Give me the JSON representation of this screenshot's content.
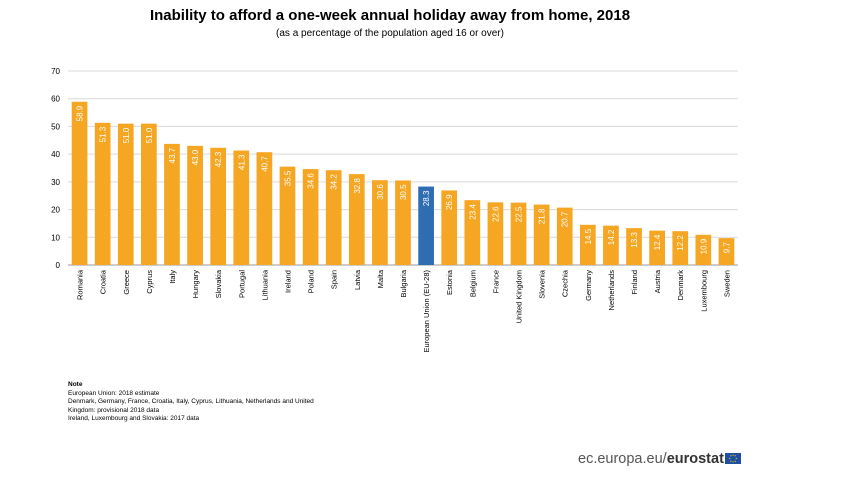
{
  "chart_data": {
    "type": "bar",
    "title": "Inability to afford a one-week annual holiday away from home, 2018",
    "subtitle": "(as a percentage of the population aged 16 or over)",
    "xlabel": "",
    "ylabel": "",
    "ylim": [
      0,
      70
    ],
    "yticks": [
      "0",
      "10",
      "20",
      "30",
      "40",
      "50",
      "60",
      "70"
    ],
    "grid": true,
    "categories": [
      "Romania",
      "Croatia",
      "Greece",
      "Cyprus",
      "Italy",
      "Hungary",
      "Slovakia",
      "Portugal",
      "Lithuania",
      "Ireland",
      "Poland",
      "Spain",
      "Latvia",
      "Malta",
      "Bulgaria",
      "European Union (EU-28)",
      "Estonia",
      "Belgium",
      "France",
      "United Kingdom",
      "Slovenia",
      "Czechia",
      "Germany",
      "Netherlands",
      "Finland",
      "Austria",
      "Denmark",
      "Luxembourg",
      "Sweden"
    ],
    "values": [
      58.9,
      51.3,
      51.0,
      51.0,
      43.7,
      43.0,
      42.3,
      41.3,
      40.7,
      35.5,
      34.6,
      34.2,
      32.8,
      30.6,
      30.5,
      28.3,
      26.9,
      23.4,
      22.6,
      22.5,
      21.8,
      20.7,
      14.5,
      14.2,
      13.3,
      12.4,
      12.2,
      10.9,
      9.7
    ],
    "labels": [
      "58.9",
      "51.3",
      "51.0",
      "51.0",
      "43.7",
      "43.0",
      "42.3",
      "41.3",
      "40.7",
      "35.5",
      "34.6",
      "34.2",
      "32.8",
      "30.6",
      "30.5",
      "28.3",
      "26.9",
      "23.4",
      "22.6",
      "22.5",
      "21.8",
      "20.7",
      "14.5",
      "14.2",
      "13.3",
      "12.4",
      "12.2",
      "10.9",
      "9.7"
    ],
    "highlight": "European Union (EU-28)",
    "colors": {
      "bar": "#f5a623",
      "highlight": "#2f6db3",
      "grid": "#d9d9d9",
      "label": "#ffffff"
    }
  },
  "notes": {
    "heading": "Note",
    "lines": [
      "European Union: 2018 estimate",
      "Denmark, Germany, France, Croatia, Italy, Cyprus, Lithuania, Netherlands and United",
      "Kingdom: provisional 2018 data",
      "Ireland, Luxembourg and Slovakia: 2017 data"
    ]
  },
  "footer": {
    "site": "ec.europa.eu/",
    "brand": "eurostat",
    "flag_icon": "eu-flag-icon"
  }
}
